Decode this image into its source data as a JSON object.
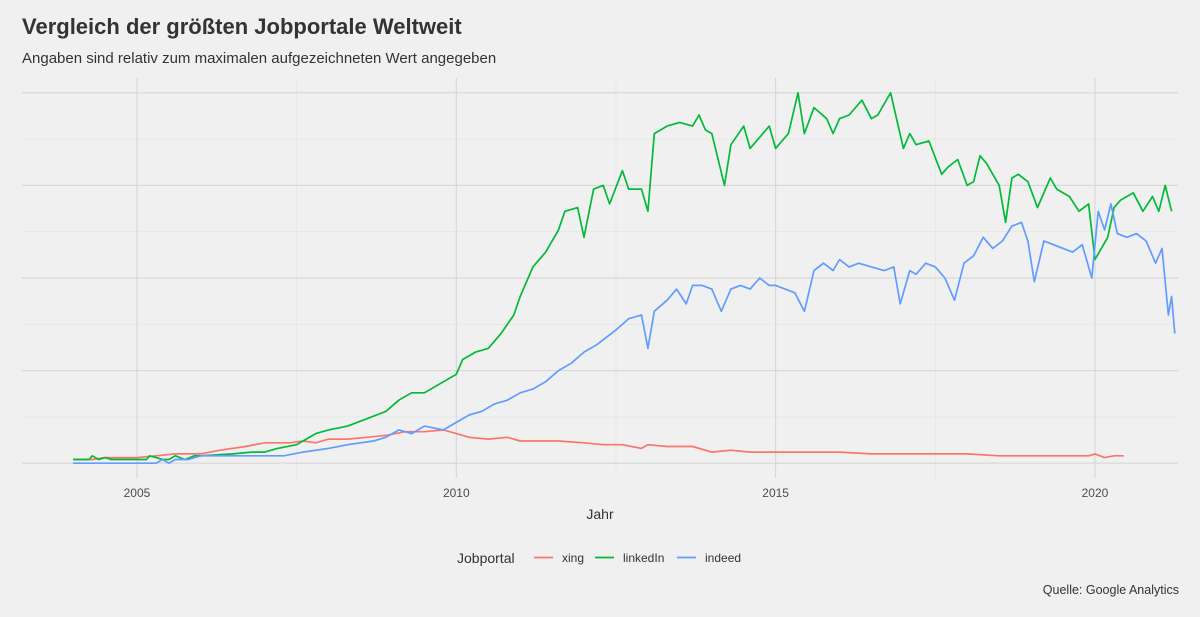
{
  "title": "Vergleich der größten Jobportale Weltweit",
  "subtitle": "Angaben sind relativ zum maximalen aufgezeichneten Wert angegeben",
  "caption": "Quelle: Google Analytics",
  "chart_data": {
    "type": "line",
    "title": "Vergleich der größten Jobportale Weltweit",
    "subtitle": "Angaben sind relativ zum maximalen aufgezeichneten Wert angegeben",
    "xlabel": "Jahr",
    "ylabel": "",
    "xlim": [
      2003.2,
      2021.3
    ],
    "ylim": [
      -4,
      104
    ],
    "xticks": [
      2005,
      2010,
      2015,
      2020
    ],
    "xtick_labels": [
      "2005",
      "2010",
      "2015",
      "2020"
    ],
    "ygrid": [
      0,
      25,
      50,
      75,
      100
    ],
    "grid": true,
    "y_tick_labels_shown": false,
    "legend_title": "Jobportal",
    "legend_position": "bottom",
    "series": [
      {
        "name": "xing",
        "color": "#F8766D",
        "points": [
          [
            2004.0,
            1
          ],
          [
            2004.3,
            1
          ],
          [
            2004.5,
            1.5
          ],
          [
            2005.0,
            1.5
          ],
          [
            2005.3,
            2
          ],
          [
            2005.6,
            2.5
          ],
          [
            2006.0,
            2.5
          ],
          [
            2006.3,
            3.5
          ],
          [
            2006.7,
            4.5
          ],
          [
            2007.0,
            5.5
          ],
          [
            2007.4,
            5.5
          ],
          [
            2007.6,
            6
          ],
          [
            2007.8,
            5.5
          ],
          [
            2008.0,
            6.5
          ],
          [
            2008.3,
            6.5
          ],
          [
            2008.6,
            7
          ],
          [
            2008.9,
            7.5
          ],
          [
            2009.2,
            8.5
          ],
          [
            2009.5,
            8.5
          ],
          [
            2009.8,
            9
          ],
          [
            2010.0,
            8
          ],
          [
            2010.2,
            7
          ],
          [
            2010.5,
            6.5
          ],
          [
            2010.8,
            7
          ],
          [
            2011.0,
            6
          ],
          [
            2011.3,
            6
          ],
          [
            2011.6,
            6
          ],
          [
            2012.0,
            5.5
          ],
          [
            2012.3,
            5
          ],
          [
            2012.6,
            5
          ],
          [
            2012.9,
            4
          ],
          [
            2013.0,
            5
          ],
          [
            2013.3,
            4.5
          ],
          [
            2013.7,
            4.5
          ],
          [
            2014.0,
            3
          ],
          [
            2014.3,
            3.5
          ],
          [
            2014.6,
            3
          ],
          [
            2015.0,
            3
          ],
          [
            2015.5,
            3
          ],
          [
            2016.0,
            3
          ],
          [
            2016.5,
            2.5
          ],
          [
            2017.0,
            2.5
          ],
          [
            2017.5,
            2.5
          ],
          [
            2018.0,
            2.5
          ],
          [
            2018.5,
            2
          ],
          [
            2019.0,
            2
          ],
          [
            2019.5,
            2
          ],
          [
            2019.9,
            2
          ],
          [
            2020.0,
            2.5
          ],
          [
            2020.15,
            1.5
          ],
          [
            2020.3,
            2
          ],
          [
            2020.45,
            2
          ]
        ]
      },
      {
        "name": "linkedIn",
        "color": "#00BA38",
        "points": [
          [
            2004.0,
            1
          ],
          [
            2004.25,
            1
          ],
          [
            2004.3,
            2
          ],
          [
            2004.4,
            1
          ],
          [
            2004.5,
            1.5
          ],
          [
            2004.6,
            1
          ],
          [
            2005.0,
            1
          ],
          [
            2005.15,
            1
          ],
          [
            2005.2,
            2
          ],
          [
            2005.3,
            1.5
          ],
          [
            2005.4,
            1
          ],
          [
            2005.5,
            1
          ],
          [
            2005.6,
            2
          ],
          [
            2005.75,
            1
          ],
          [
            2005.9,
            2
          ],
          [
            2006.0,
            2
          ],
          [
            2006.5,
            2.5
          ],
          [
            2006.8,
            3
          ],
          [
            2007.0,
            3
          ],
          [
            2007.2,
            4
          ],
          [
            2007.5,
            5
          ],
          [
            2007.6,
            6
          ],
          [
            2007.8,
            8
          ],
          [
            2008.0,
            9
          ],
          [
            2008.3,
            10
          ],
          [
            2008.6,
            12
          ],
          [
            2008.9,
            14
          ],
          [
            2009.1,
            17
          ],
          [
            2009.3,
            19
          ],
          [
            2009.5,
            19
          ],
          [
            2009.8,
            22
          ],
          [
            2010.0,
            24
          ],
          [
            2010.1,
            28
          ],
          [
            2010.3,
            30
          ],
          [
            2010.5,
            31
          ],
          [
            2010.7,
            35
          ],
          [
            2010.9,
            40
          ],
          [
            2011.0,
            45
          ],
          [
            2011.2,
            53
          ],
          [
            2011.4,
            57
          ],
          [
            2011.6,
            63
          ],
          [
            2011.7,
            68
          ],
          [
            2011.9,
            69
          ],
          [
            2012.0,
            61
          ],
          [
            2012.15,
            74
          ],
          [
            2012.3,
            75
          ],
          [
            2012.4,
            70
          ],
          [
            2012.6,
            79
          ],
          [
            2012.7,
            74
          ],
          [
            2012.9,
            74
          ],
          [
            2013.0,
            68
          ],
          [
            2013.1,
            89
          ],
          [
            2013.3,
            91
          ],
          [
            2013.5,
            92
          ],
          [
            2013.7,
            91
          ],
          [
            2013.8,
            94
          ],
          [
            2013.9,
            90
          ],
          [
            2014.0,
            89
          ],
          [
            2014.2,
            75
          ],
          [
            2014.3,
            86
          ],
          [
            2014.5,
            91
          ],
          [
            2014.6,
            85
          ],
          [
            2014.8,
            89
          ],
          [
            2014.9,
            91
          ],
          [
            2015.0,
            85
          ],
          [
            2015.2,
            89
          ],
          [
            2015.35,
            100
          ],
          [
            2015.45,
            89
          ],
          [
            2015.6,
            96
          ],
          [
            2015.8,
            93
          ],
          [
            2015.9,
            89
          ],
          [
            2016.0,
            93
          ],
          [
            2016.15,
            94
          ],
          [
            2016.35,
            98
          ],
          [
            2016.5,
            93
          ],
          [
            2016.6,
            94
          ],
          [
            2016.8,
            100
          ],
          [
            2017.0,
            85
          ],
          [
            2017.1,
            89
          ],
          [
            2017.2,
            86
          ],
          [
            2017.4,
            87
          ],
          [
            2017.6,
            78
          ],
          [
            2017.7,
            80
          ],
          [
            2017.85,
            82
          ],
          [
            2018.0,
            75
          ],
          [
            2018.1,
            76
          ],
          [
            2018.2,
            83
          ],
          [
            2018.3,
            81
          ],
          [
            2018.5,
            75
          ],
          [
            2018.6,
            65
          ],
          [
            2018.7,
            77
          ],
          [
            2018.8,
            78
          ],
          [
            2018.95,
            76
          ],
          [
            2019.1,
            69
          ],
          [
            2019.3,
            77
          ],
          [
            2019.4,
            74
          ],
          [
            2019.6,
            72
          ],
          [
            2019.75,
            68
          ],
          [
            2019.9,
            70
          ],
          [
            2020.0,
            55
          ],
          [
            2020.2,
            61
          ],
          [
            2020.3,
            69
          ],
          [
            2020.4,
            71
          ],
          [
            2020.5,
            72
          ],
          [
            2020.6,
            73
          ],
          [
            2020.75,
            68
          ],
          [
            2020.9,
            72
          ],
          [
            2021.0,
            68
          ],
          [
            2021.1,
            75
          ],
          [
            2021.2,
            68
          ]
        ]
      },
      {
        "name": "indeed",
        "color": "#619CFF",
        "points": [
          [
            2004.0,
            0
          ],
          [
            2004.5,
            0
          ],
          [
            2005.0,
            0
          ],
          [
            2005.3,
            0
          ],
          [
            2005.4,
            1
          ],
          [
            2005.5,
            0
          ],
          [
            2005.6,
            1
          ],
          [
            2005.8,
            1
          ],
          [
            2006.0,
            2
          ],
          [
            2006.5,
            2
          ],
          [
            2007.0,
            2
          ],
          [
            2007.3,
            2
          ],
          [
            2007.6,
            3
          ],
          [
            2008.0,
            4
          ],
          [
            2008.3,
            5
          ],
          [
            2008.7,
            6
          ],
          [
            2008.9,
            7
          ],
          [
            2009.1,
            9
          ],
          [
            2009.3,
            8
          ],
          [
            2009.5,
            10
          ],
          [
            2009.8,
            9
          ],
          [
            2010.0,
            11
          ],
          [
            2010.2,
            13
          ],
          [
            2010.4,
            14
          ],
          [
            2010.6,
            16
          ],
          [
            2010.8,
            17
          ],
          [
            2011.0,
            19
          ],
          [
            2011.2,
            20
          ],
          [
            2011.4,
            22
          ],
          [
            2011.6,
            25
          ],
          [
            2011.8,
            27
          ],
          [
            2012.0,
            30
          ],
          [
            2012.2,
            32
          ],
          [
            2012.35,
            34
          ],
          [
            2012.5,
            36
          ],
          [
            2012.7,
            39
          ],
          [
            2012.9,
            40
          ],
          [
            2013.0,
            31
          ],
          [
            2013.1,
            41
          ],
          [
            2013.3,
            44
          ],
          [
            2013.45,
            47
          ],
          [
            2013.6,
            43
          ],
          [
            2013.7,
            48
          ],
          [
            2013.85,
            48
          ],
          [
            2014.0,
            47
          ],
          [
            2014.15,
            41
          ],
          [
            2014.3,
            47
          ],
          [
            2014.45,
            48
          ],
          [
            2014.6,
            47
          ],
          [
            2014.75,
            50
          ],
          [
            2014.9,
            48
          ],
          [
            2015.0,
            48
          ],
          [
            2015.15,
            47
          ],
          [
            2015.3,
            46
          ],
          [
            2015.45,
            41
          ],
          [
            2015.6,
            52
          ],
          [
            2015.75,
            54
          ],
          [
            2015.9,
            52
          ],
          [
            2016.0,
            55
          ],
          [
            2016.15,
            53
          ],
          [
            2016.3,
            54
          ],
          [
            2016.5,
            53
          ],
          [
            2016.7,
            52
          ],
          [
            2016.85,
            53
          ],
          [
            2016.95,
            43
          ],
          [
            2017.1,
            52
          ],
          [
            2017.2,
            51
          ],
          [
            2017.35,
            54
          ],
          [
            2017.5,
            53
          ],
          [
            2017.65,
            50
          ],
          [
            2017.8,
            44
          ],
          [
            2017.95,
            54
          ],
          [
            2018.1,
            56
          ],
          [
            2018.25,
            61
          ],
          [
            2018.4,
            58
          ],
          [
            2018.55,
            60
          ],
          [
            2018.7,
            64
          ],
          [
            2018.85,
            65
          ],
          [
            2018.95,
            60
          ],
          [
            2019.05,
            49
          ],
          [
            2019.2,
            60
          ],
          [
            2019.35,
            59
          ],
          [
            2019.5,
            58
          ],
          [
            2019.65,
            57
          ],
          [
            2019.8,
            59
          ],
          [
            2019.95,
            50
          ],
          [
            2020.05,
            68
          ],
          [
            2020.15,
            63
          ],
          [
            2020.25,
            70
          ],
          [
            2020.35,
            62
          ],
          [
            2020.5,
            61
          ],
          [
            2020.65,
            62
          ],
          [
            2020.8,
            60
          ],
          [
            2020.95,
            54
          ],
          [
            2021.05,
            58
          ],
          [
            2021.15,
            40
          ],
          [
            2021.2,
            45
          ],
          [
            2021.25,
            35
          ]
        ]
      }
    ]
  }
}
